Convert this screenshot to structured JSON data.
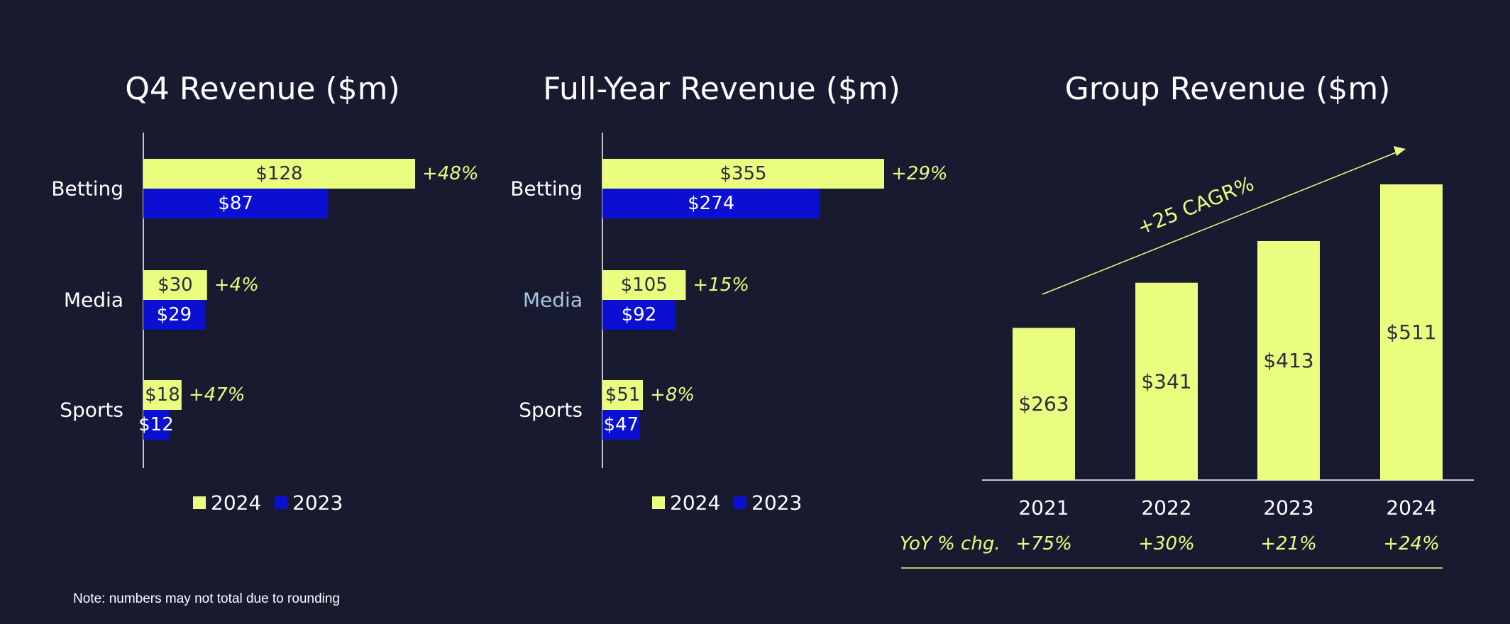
{
  "colors": {
    "background": "#181b30",
    "series_2024": "#eafd7e",
    "series_2023": "#0a0fd2",
    "growth_text": "#eafd7e",
    "axis": "#ffffff",
    "media_label_fy": "#a9c4dd"
  },
  "note": "Note: numbers may not total due to rounding",
  "chart_data": [
    {
      "type": "bar",
      "orientation": "horizontal",
      "title": "Q4 Revenue ($m)",
      "categories": [
        "Betting",
        "Media",
        "Sports"
      ],
      "series": [
        {
          "name": "2024",
          "values": [
            128,
            30,
            18
          ],
          "labels": [
            "$128",
            "$30",
            "$18"
          ]
        },
        {
          "name": "2023",
          "values": [
            87,
            29,
            12
          ],
          "labels": [
            "$87",
            "$29",
            "$12"
          ]
        }
      ],
      "growth_labels": [
        "+48%",
        "+4%",
        "+47%"
      ],
      "legend": [
        "2024",
        "2023"
      ],
      "legend_position": "bottom"
    },
    {
      "type": "bar",
      "orientation": "horizontal",
      "title": "Full-Year Revenue ($m)",
      "categories": [
        "Betting",
        "Media",
        "Sports"
      ],
      "series": [
        {
          "name": "2024",
          "values": [
            355,
            105,
            51
          ],
          "labels": [
            "$355",
            "$105",
            "$51"
          ]
        },
        {
          "name": "2023",
          "values": [
            274,
            92,
            47
          ],
          "labels": [
            "$274",
            "$92",
            "$47"
          ]
        }
      ],
      "growth_labels": [
        "+29%",
        "+15%",
        "+8%"
      ],
      "legend": [
        "2024",
        "2023"
      ],
      "legend_position": "bottom"
    },
    {
      "type": "bar",
      "orientation": "vertical",
      "title": "Group Revenue ($m)",
      "categories": [
        "2021",
        "2022",
        "2023",
        "2024"
      ],
      "values": [
        263,
        341,
        413,
        511
      ],
      "labels": [
        "$263",
        "$341",
        "$413",
        "$511"
      ],
      "yoy_label": "YoY % chg.",
      "yoy_values": [
        "+75%",
        "+30%",
        "+21%",
        "+24%"
      ],
      "annotation": "+25 CAGR%"
    }
  ]
}
